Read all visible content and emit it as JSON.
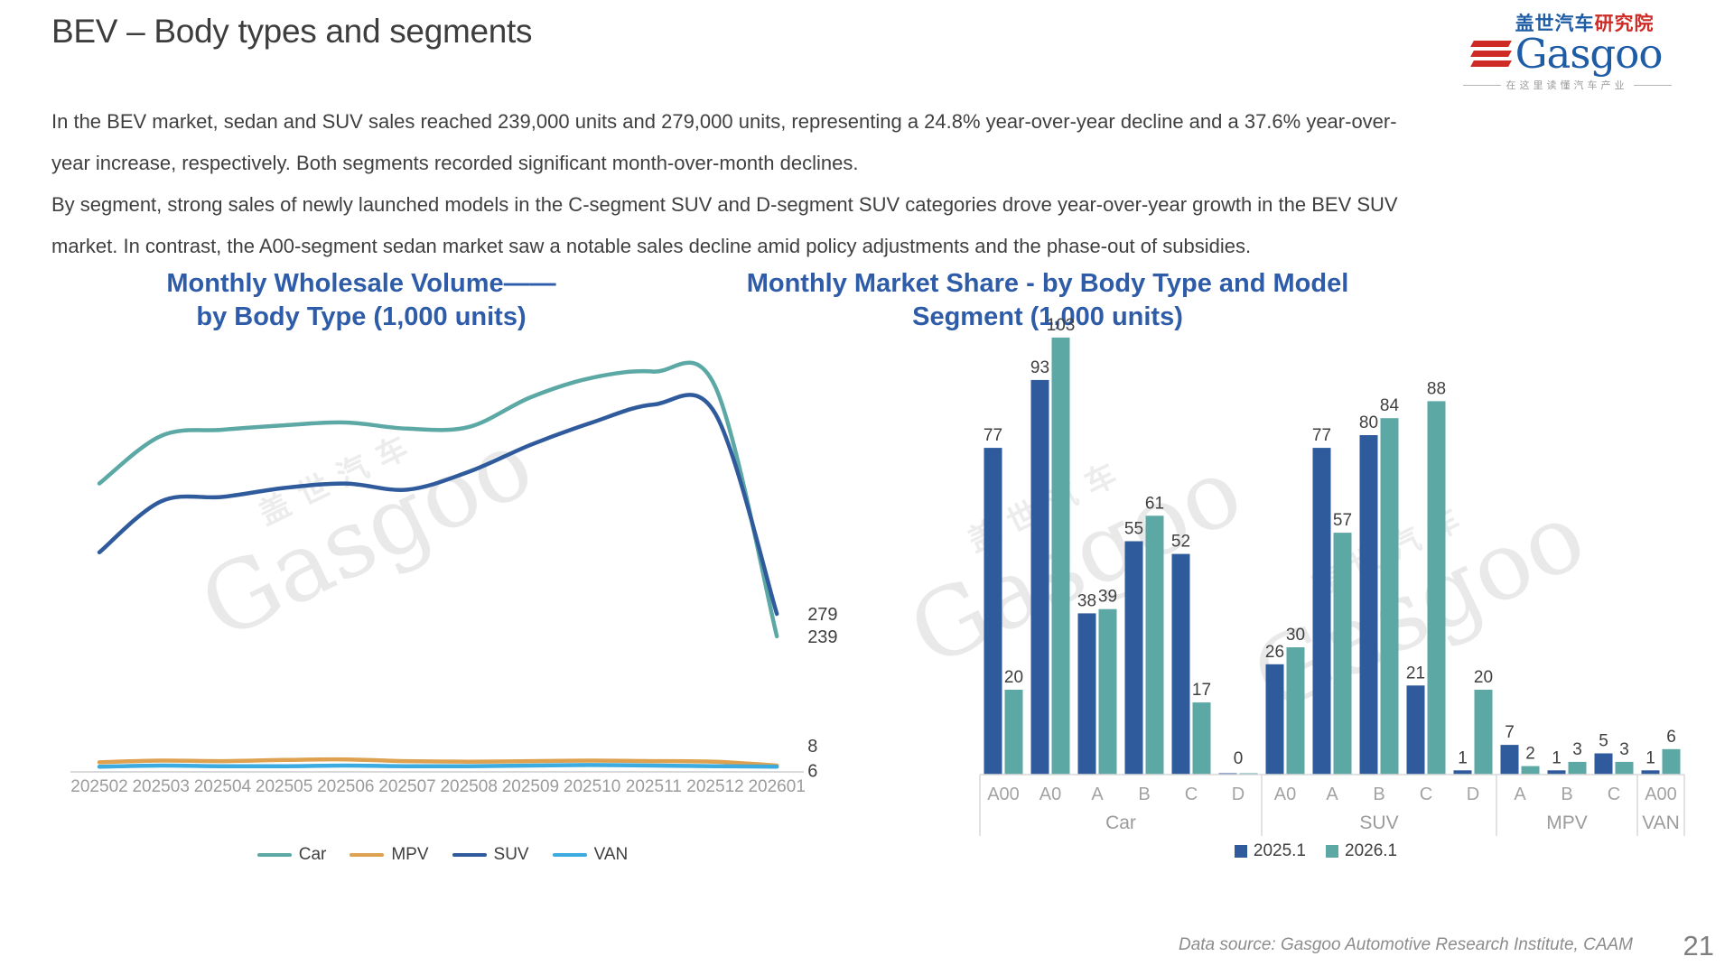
{
  "page": {
    "title": "BEV – Body types and segments",
    "page_number": "21",
    "footer": "Data source: Gasgoo Automotive Research Institute, CAAM",
    "watermark": {
      "cn": "盖世汽车",
      "en": "Gasgoo"
    }
  },
  "logo": {
    "cn_blue": "盖世汽车",
    "cn_red": "研究院",
    "wordmark": "Gasgoo",
    "tagline": "在这里读懂汽车产业"
  },
  "summary": {
    "para1": "In the BEV market, sedan and SUV sales reached 239,000 units and 279,000 units, representing a 24.8% year-over-year decline and a 37.6% year-over-year increase, respectively. Both segments recorded significant month-over-month declines.",
    "para2": "By segment, strong sales of newly launched models in the C-segment SUV and D-segment SUV categories drove year-over-year growth in the BEV SUV market. In contrast, the A00-segment sedan market saw a notable sales decline amid policy adjustments and the phase-out of subsidies."
  },
  "chart_data": [
    {
      "id": "wholesale-line",
      "type": "line",
      "title_line1": "Monthly Wholesale Volume——",
      "title_line2": "by Body Type (1,000 units)",
      "xlabel": "",
      "ylabel": "",
      "grid": false,
      "legend_position": "bottom",
      "x": [
        "202502",
        "202503",
        "202504",
        "202505",
        "202506",
        "202507",
        "202508",
        "202509",
        "202510",
        "202511",
        "202512",
        "202601"
      ],
      "series": [
        {
          "name": "Car",
          "color": "#5ba8a5",
          "end_label": "239",
          "label_dy": 0,
          "values": [
            512,
            597,
            608,
            616,
            621,
            610,
            613,
            666,
            701,
            712,
            685,
            239
          ]
        },
        {
          "name": "MPV",
          "color": "#dea14f",
          "end_label": "8",
          "label_dy": -22,
          "values": [
            14,
            17,
            16,
            18,
            19,
            16,
            15,
            16,
            17,
            16,
            15,
            8
          ]
        },
        {
          "name": "SUV",
          "color": "#2f5b9d",
          "end_label": "279",
          "label_dy": 0,
          "values": [
            389,
            480,
            488,
            504,
            512,
            501,
            533,
            581,
            621,
            653,
            637,
            279
          ]
        },
        {
          "name": "VAN",
          "color": "#3babe0",
          "end_label": "6",
          "label_dy": 4,
          "values": [
            6,
            8,
            7,
            7,
            8,
            7,
            7,
            8,
            9,
            8,
            7,
            6
          ]
        }
      ]
    },
    {
      "id": "segment-bars",
      "type": "bar",
      "title_line1": "Monthly Market Share - by Body Type and Model",
      "title_line2": "Segment (1,000 units)",
      "grid": false,
      "legend_position": "bottom",
      "series_names": [
        "2025.1",
        "2026.1"
      ],
      "series_colors": [
        "#2f5b9d",
        "#5ba8a5"
      ],
      "ylim": [
        0,
        110
      ],
      "groups": [
        {
          "name": "Car",
          "segments": [
            {
              "label": "A00",
              "v": [
                77,
                20
              ]
            },
            {
              "label": "A0",
              "v": [
                93,
                103
              ]
            },
            {
              "label": "A",
              "v": [
                38,
                39
              ]
            },
            {
              "label": "B",
              "v": [
                55,
                61
              ]
            },
            {
              "label": "C",
              "v": [
                52,
                17
              ]
            },
            {
              "label": "D",
              "v": [
                0,
                0
              ]
            }
          ]
        },
        {
          "name": "SUV",
          "segments": [
            {
              "label": "A0",
              "v": [
                26,
                30
              ]
            },
            {
              "label": "A",
              "v": [
                77,
                57
              ]
            },
            {
              "label": "B",
              "v": [
                80,
                84
              ]
            },
            {
              "label": "C",
              "v": [
                21,
                88
              ]
            },
            {
              "label": "D",
              "v": [
                1,
                20
              ]
            }
          ]
        },
        {
          "name": "MPV",
          "segments": [
            {
              "label": "A",
              "v": [
                7,
                2
              ]
            },
            {
              "label": "B",
              "v": [
                1,
                3
              ]
            },
            {
              "label": "C",
              "v": [
                5,
                3
              ]
            }
          ]
        },
        {
          "name": "VAN",
          "segments": [
            {
              "label": "A00",
              "v": [
                1,
                6
              ]
            }
          ]
        }
      ]
    }
  ]
}
